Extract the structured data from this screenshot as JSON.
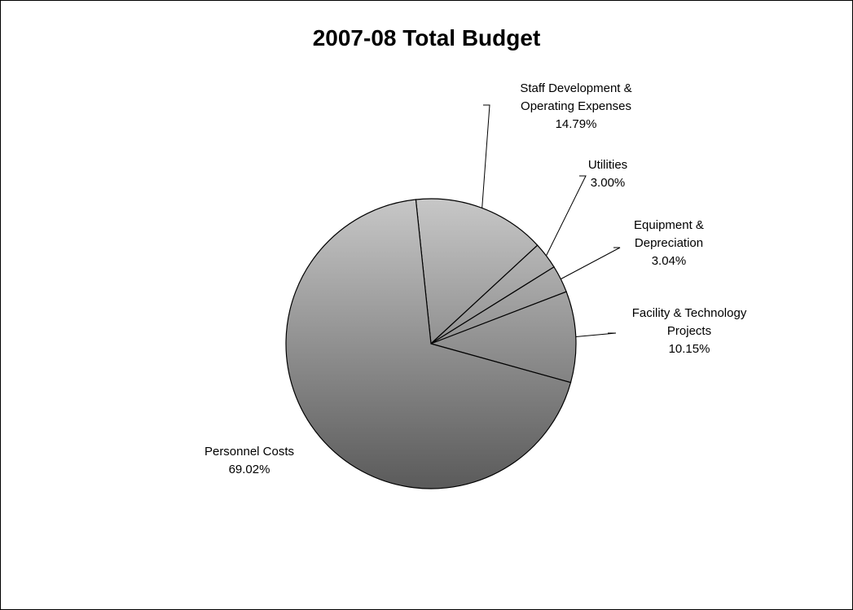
{
  "chart_data": {
    "type": "pie",
    "title": "2007-08 Total Budget",
    "slices": [
      {
        "name": "Staff Development & Operating Expenses",
        "label_lines": [
          "Staff Development &",
          "Operating Expenses"
        ],
        "percent_label": "14.79%",
        "value": 14.79
      },
      {
        "name": "Utilities",
        "label_lines": [
          "Utilities"
        ],
        "percent_label": "3.00%",
        "value": 3.0
      },
      {
        "name": "Equipment & Depreciation",
        "label_lines": [
          "Equipment &",
          "Depreciation"
        ],
        "percent_label": "3.04%",
        "value": 3.04
      },
      {
        "name": "Facility & Technology Projects",
        "label_lines": [
          "Facility & Technology",
          "Projects"
        ],
        "percent_label": "10.15%",
        "value": 10.15
      },
      {
        "name": "Personnel Costs",
        "label_lines": [
          "Personnel Costs"
        ],
        "percent_label": "69.02%",
        "value": 69.02
      }
    ],
    "colors": {
      "gradient_light": "#c8c8c8",
      "gradient_dark": "#5a5a5a",
      "outline": "#000000"
    }
  }
}
